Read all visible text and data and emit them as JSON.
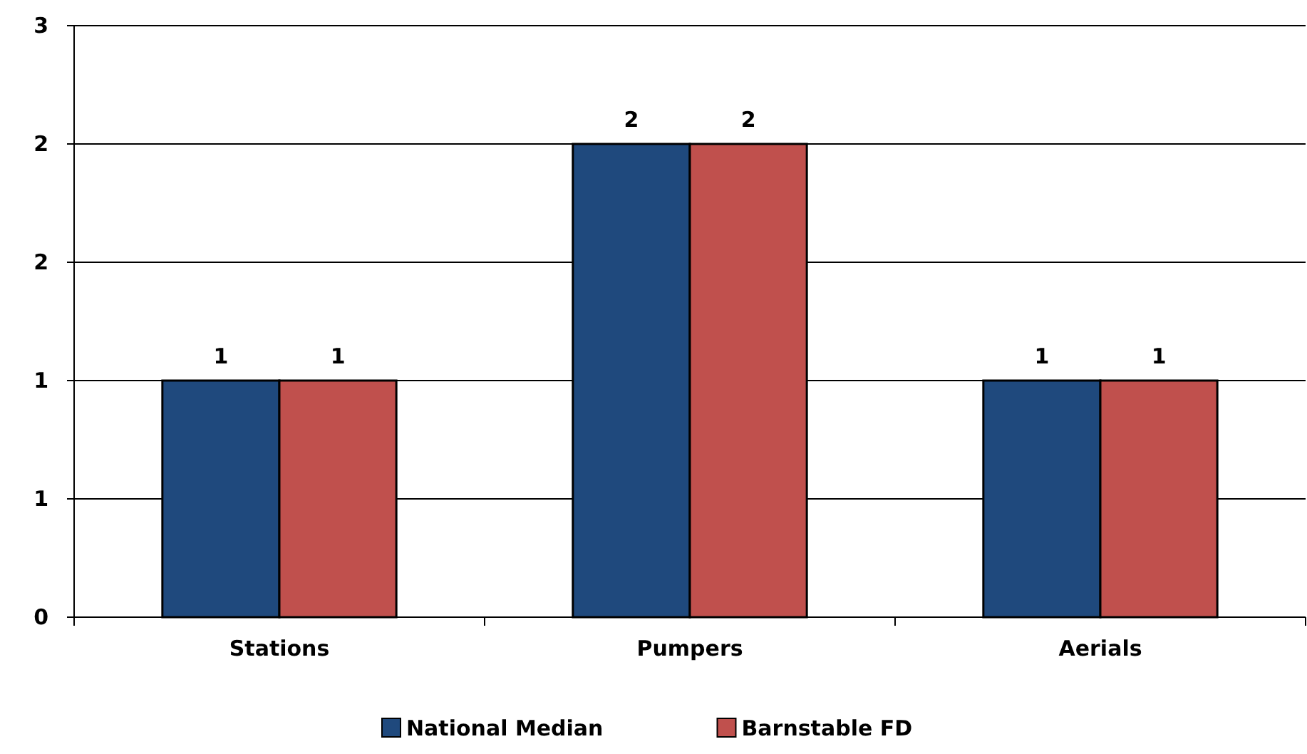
{
  "chart_data": {
    "type": "bar",
    "categories": [
      "Stations",
      "Pumpers",
      "Aerials"
    ],
    "series": [
      {
        "name": "National Median",
        "color": "#1f497d",
        "values": [
          1.2,
          2.4,
          1.2
        ],
        "value_labels": [
          "1",
          "2",
          "1"
        ]
      },
      {
        "name": "Barnstable FD",
        "color": "#c0504d",
        "values": [
          1.2,
          2.4,
          1.2
        ],
        "value_labels": [
          "1",
          "2",
          "1"
        ]
      }
    ],
    "ylim": [
      0,
      3
    ],
    "yticks": [
      {
        "value": 0,
        "label": "0"
      },
      {
        "value": 0.6,
        "label": "1"
      },
      {
        "value": 1.2,
        "label": "1"
      },
      {
        "value": 1.8,
        "label": "2"
      },
      {
        "value": 2.4,
        "label": "2"
      },
      {
        "value": 3,
        "label": "3"
      }
    ],
    "grid": "y",
    "legend": "bottom"
  }
}
